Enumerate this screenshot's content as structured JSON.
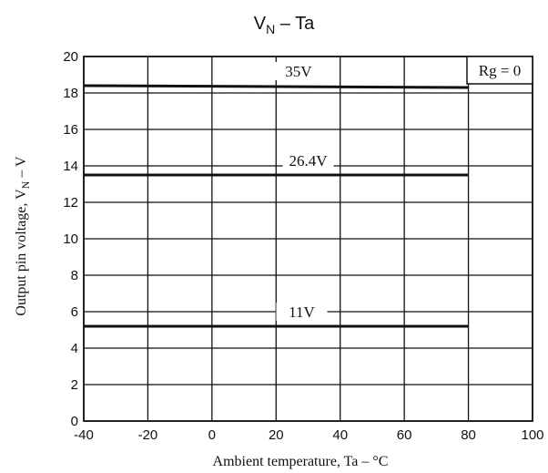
{
  "chart_data": {
    "type": "line",
    "title": {
      "main": "V",
      "sub": "N",
      "rest": " – Ta"
    },
    "xlabel": "Ambient temperature, Ta – °C",
    "ylabel": {
      "main": "Output pin voltage, V",
      "sub": "N",
      "rest": " – V"
    },
    "xlim": [
      -40,
      100
    ],
    "ylim": [
      0,
      20
    ],
    "xticks": [
      -40,
      -20,
      0,
      20,
      40,
      60,
      80,
      100
    ],
    "yticks": [
      0,
      2,
      4,
      6,
      8,
      10,
      12,
      14,
      16,
      18,
      20
    ],
    "xtick_labels": [
      "-40",
      "-20",
      "0",
      "20",
      "40",
      "60",
      "80",
      "100"
    ],
    "ytick_labels": [
      "0",
      "2",
      "4",
      "6",
      "8",
      "10",
      "12",
      "14",
      "16",
      "18",
      "20"
    ],
    "grid": true,
    "annotation": "Rg = 0",
    "series": [
      {
        "name": "35V",
        "x": [
          -40,
          80
        ],
        "y": [
          18.4,
          18.3
        ],
        "label_x": 27
      },
      {
        "name": "26.4V",
        "x": [
          -40,
          80
        ],
        "y": [
          13.5,
          13.5
        ],
        "label_x": 30
      },
      {
        "name": "11V",
        "x": [
          -40,
          80
        ],
        "y": [
          5.2,
          5.2
        ],
        "label_x": 28
      }
    ]
  }
}
